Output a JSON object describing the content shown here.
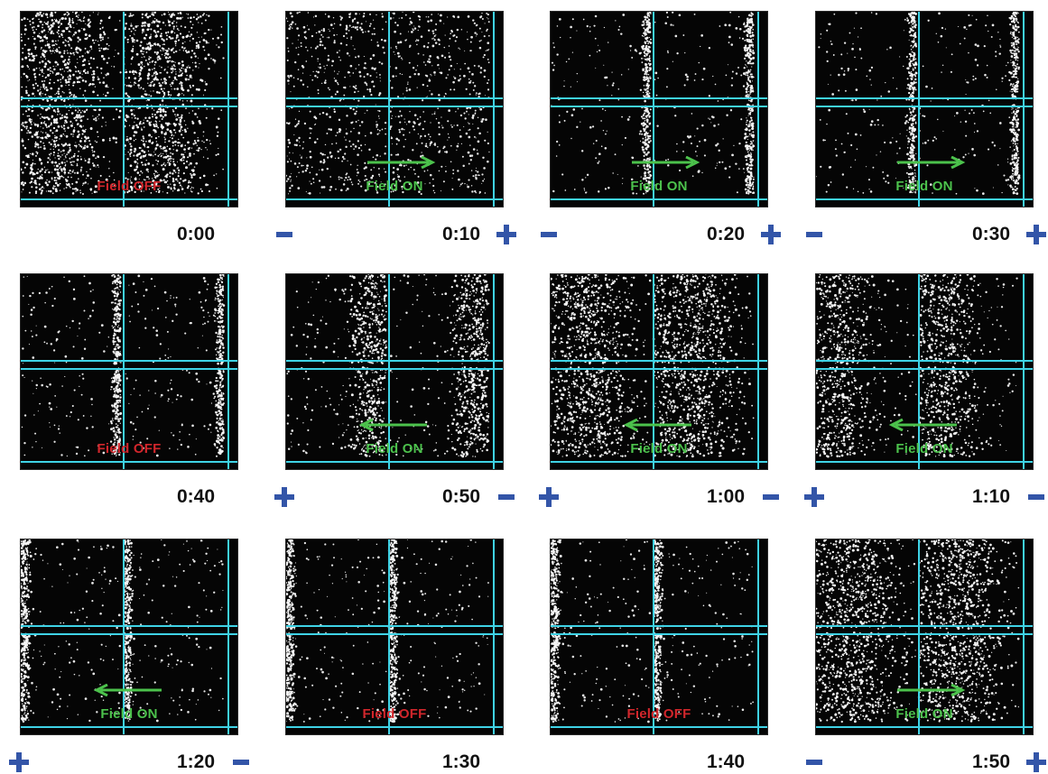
{
  "colors": {
    "cyan_grid": "#3fd3e6",
    "field_off": "#d2262c",
    "field_on": "#4cc24c",
    "electrode_sign": "#3355a8"
  },
  "panels": [
    {
      "time": "0:00",
      "label": "Field OFF",
      "state": "off",
      "arrow": "none",
      "left_sign": "",
      "right_sign": ""
    },
    {
      "time": "0:10",
      "label": "Field ON",
      "state": "on",
      "arrow": "right",
      "left_sign": "-",
      "right_sign": "+"
    },
    {
      "time": "0:20",
      "label": "Field ON",
      "state": "on",
      "arrow": "right",
      "left_sign": "-",
      "right_sign": "+"
    },
    {
      "time": "0:30",
      "label": "Field ON",
      "state": "on",
      "arrow": "right",
      "left_sign": "-",
      "right_sign": "+"
    },
    {
      "time": "0:40",
      "label": "Field OFF",
      "state": "off",
      "arrow": "none",
      "left_sign": "",
      "right_sign": ""
    },
    {
      "time": "0:50",
      "label": "Field ON",
      "state": "on",
      "arrow": "left",
      "left_sign": "+",
      "right_sign": "-"
    },
    {
      "time": "1:00",
      "label": "Field ON",
      "state": "on",
      "arrow": "left",
      "left_sign": "+",
      "right_sign": "-"
    },
    {
      "time": "1:10",
      "label": "Field ON",
      "state": "on",
      "arrow": "left",
      "left_sign": "+",
      "right_sign": "-"
    },
    {
      "time": "1:20",
      "label": "Field ON",
      "state": "on",
      "arrow": "left",
      "left_sign": "+",
      "right_sign": "-"
    },
    {
      "time": "1:30",
      "label": "Field OFF",
      "state": "off",
      "arrow": "none",
      "left_sign": "",
      "right_sign": ""
    },
    {
      "time": "1:40",
      "label": "Field OFF",
      "state": "off",
      "arrow": "none",
      "left_sign": "",
      "right_sign": ""
    },
    {
      "time": "1:50",
      "label": "Field ON",
      "state": "on",
      "arrow": "right",
      "left_sign": "-",
      "right_sign": "+"
    }
  ]
}
